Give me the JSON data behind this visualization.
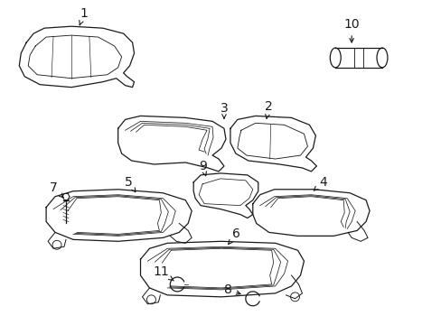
{
  "background_color": "#ffffff",
  "line_color": "#1a1a1a",
  "line_width": 0.9,
  "fig_width": 4.89,
  "fig_height": 3.6,
  "dpi": 100
}
